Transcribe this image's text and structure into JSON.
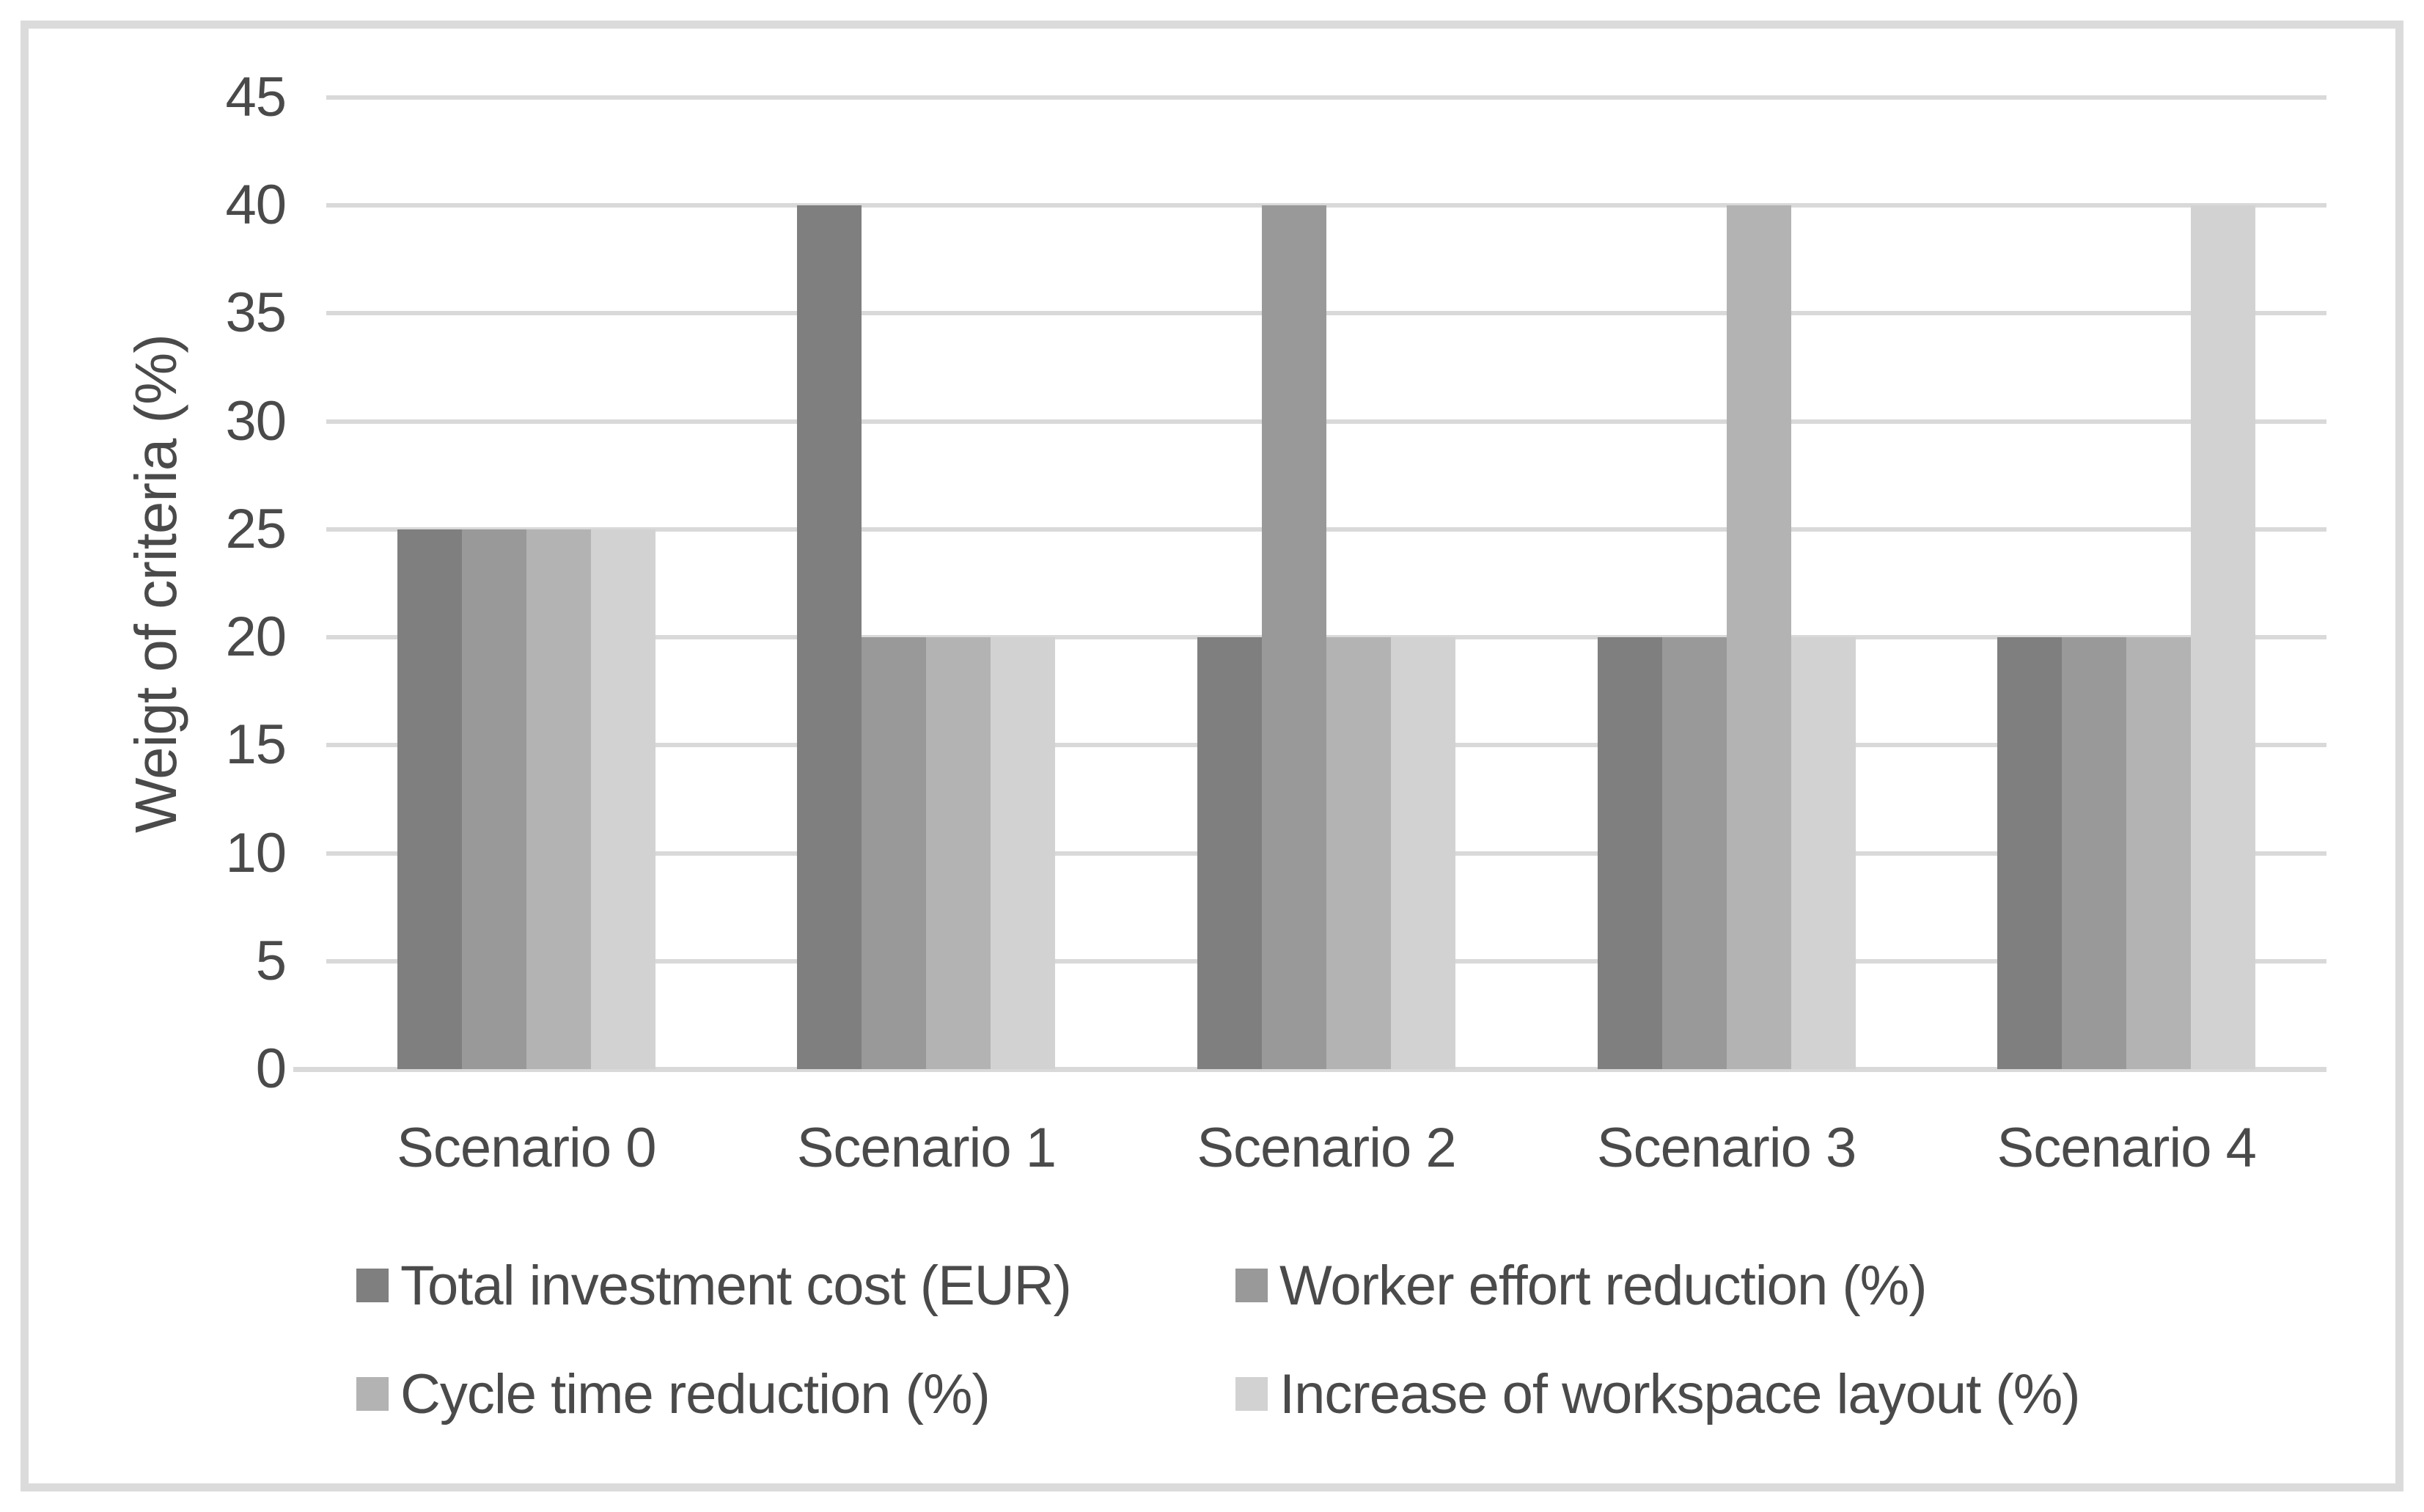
{
  "chart_data": {
    "type": "bar",
    "title": "",
    "xlabel": "",
    "ylabel": "Weigt of criteria (%)",
    "categories": [
      "Scenario 0",
      "Scenario 1",
      "Scenario 2",
      "Scenario 3",
      "Scenario 4"
    ],
    "series": [
      {
        "name": "Total investment cost (EUR)",
        "color": "#7f7f7f",
        "values": [
          25,
          40,
          20,
          20,
          20
        ]
      },
      {
        "name": "Worker effort reduction (%)",
        "color": "#999999",
        "values": [
          25,
          20,
          40,
          20,
          20
        ]
      },
      {
        "name": "Cycle time reduction (%)",
        "color": "#b3b3b3",
        "values": [
          25,
          20,
          20,
          40,
          20
        ]
      },
      {
        "name": "Increase of workspace layout (%)",
        "color": "#d2d2d2",
        "values": [
          25,
          20,
          20,
          20,
          40
        ]
      }
    ],
    "ylim": [
      0,
      45
    ],
    "yticks": [
      45,
      40,
      35,
      30,
      25,
      20,
      15,
      10,
      5,
      0
    ],
    "grid": true,
    "grid_color": "#d9d9d9",
    "axis_text_color": "#4a4a4a",
    "frame_border_color": "#dbdbdb",
    "background_color": "#ffffff",
    "legend_position": "bottom",
    "legend_layout": "two-columns-two-rows"
  }
}
